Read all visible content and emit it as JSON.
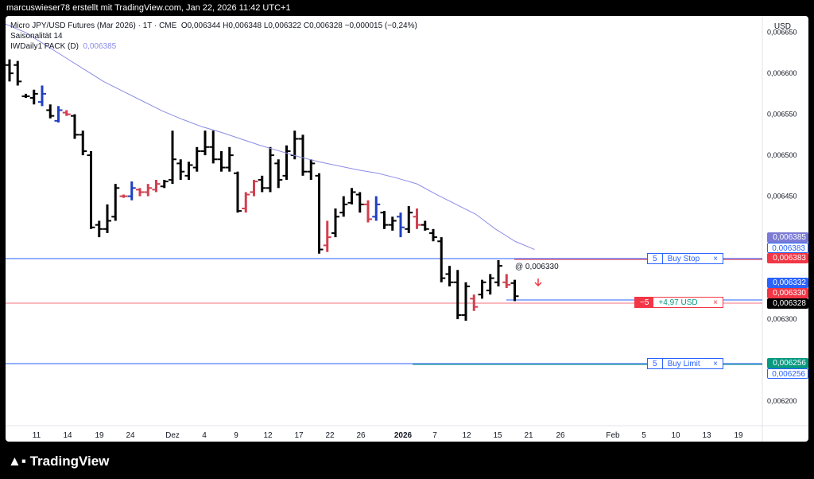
{
  "header": {
    "credit": "marcuswieser78 erstellt mit TradingView.com, Jan 22, 2026 11:42 UTC+1"
  },
  "legend": {
    "symbol": "Micro JPY/USD Futures (Mar 2026) · 1T · CME",
    "ohlc": "O0,006344  H0,006348  L0,006322  C0,006328  −0,000015 (−0,24%)",
    "indicator1": "Saisonalität  14",
    "indicator2_name": "IWDaily1 PACK (D)",
    "indicator2_value": "0,006385"
  },
  "currency": "USD",
  "colors": {
    "up": "#000000",
    "down": "#000000",
    "blue_bar": "#1f3fbf",
    "red_bar": "#d0404f",
    "ma": "#8c8ce6",
    "hline": "#2962ff",
    "redline": "#f23645"
  },
  "y_axis_ticks": [
    "0,006650",
    "0,006600",
    "0,006550",
    "0,006500",
    "0,006450",
    "0,006300",
    "0,006200"
  ],
  "x_axis_ticks": [
    "11",
    "14",
    "19",
    "24",
    "Dez",
    "4",
    "9",
    "12",
    "17",
    "22",
    "26",
    "2026",
    "7",
    "12",
    "15",
    "21",
    "26",
    "Feb",
    "5",
    "10",
    "13",
    "19"
  ],
  "price_labels": {
    "ma": "0,006385",
    "buy_stop": "0,006383",
    "buy_stop2": "0,006383",
    "position_blue": "0,006332",
    "position_red": "0,006330",
    "last": "0,006328",
    "buy_limit": "0,006256",
    "buy_limit2": "0,006256"
  },
  "orders": {
    "buy_stop": {
      "qty": "5",
      "label": "Buy Stop",
      "close": "×"
    },
    "position": {
      "qty": "−5",
      "label": "+4,97 USD",
      "close": "×"
    },
    "buy_limit": {
      "qty": "5",
      "label": "Buy Limit",
      "close": "×"
    }
  },
  "fill_note": "@ 0,006330",
  "footer": {
    "brand": "TradingView"
  },
  "chart_data": {
    "type": "ohlc-bar",
    "y_range": [
      0.00617,
      0.00667
    ],
    "bars": [
      {
        "h": 0.006617,
        "l": 0.00659,
        "o": 0.00661,
        "c": 0.0066,
        "col": "k"
      },
      {
        "h": 0.006615,
        "l": 0.006585,
        "o": 0.00661,
        "c": 0.00659,
        "col": "k"
      },
      {
        "h": 0.006575,
        "l": 0.00657,
        "o": 0.006572,
        "c": 0.006572,
        "col": "k"
      },
      {
        "h": 0.00658,
        "l": 0.006562,
        "o": 0.00657,
        "c": 0.006575,
        "col": "k"
      },
      {
        "h": 0.006585,
        "l": 0.00656,
        "o": 0.006565,
        "c": 0.006575,
        "col": "b"
      },
      {
        "h": 0.006562,
        "l": 0.006545,
        "o": 0.006555,
        "c": 0.006548,
        "col": "k"
      },
      {
        "h": 0.00656,
        "l": 0.00654,
        "o": 0.006542,
        "c": 0.006555,
        "col": "b"
      },
      {
        "h": 0.006555,
        "l": 0.006548,
        "o": 0.006552,
        "c": 0.00655,
        "col": "r"
      },
      {
        "h": 0.00655,
        "l": 0.00652,
        "o": 0.006548,
        "c": 0.006525,
        "col": "k"
      },
      {
        "h": 0.00653,
        "l": 0.0065,
        "o": 0.006525,
        "c": 0.006505,
        "col": "k"
      },
      {
        "h": 0.006505,
        "l": 0.00641,
        "o": 0.0065,
        "c": 0.006412,
        "col": "k"
      },
      {
        "h": 0.00642,
        "l": 0.0064,
        "o": 0.006415,
        "c": 0.00641,
        "col": "k"
      },
      {
        "h": 0.00644,
        "l": 0.006405,
        "o": 0.00641,
        "c": 0.00642,
        "col": "k"
      },
      {
        "h": 0.006465,
        "l": 0.00642,
        "o": 0.006425,
        "c": 0.00646,
        "col": "k"
      },
      {
        "h": 0.006452,
        "l": 0.006448,
        "o": 0.00645,
        "c": 0.00645,
        "col": "r"
      },
      {
        "h": 0.006468,
        "l": 0.006445,
        "o": 0.00645,
        "c": 0.00646,
        "col": "b"
      },
      {
        "h": 0.00646,
        "l": 0.00645,
        "o": 0.006458,
        "c": 0.006455,
        "col": "r"
      },
      {
        "h": 0.006465,
        "l": 0.00645,
        "o": 0.006455,
        "c": 0.00646,
        "col": "r"
      },
      {
        "h": 0.00647,
        "l": 0.006455,
        "o": 0.006458,
        "c": 0.006465,
        "col": "r"
      },
      {
        "h": 0.00647,
        "l": 0.00646,
        "o": 0.006462,
        "c": 0.006468,
        "col": "k"
      },
      {
        "h": 0.00653,
        "l": 0.006465,
        "o": 0.00647,
        "c": 0.006495,
        "col": "k"
      },
      {
        "h": 0.006495,
        "l": 0.00647,
        "o": 0.00649,
        "c": 0.00648,
        "col": "k"
      },
      {
        "h": 0.006492,
        "l": 0.00647,
        "o": 0.006475,
        "c": 0.006488,
        "col": "k"
      },
      {
        "h": 0.00651,
        "l": 0.00648,
        "o": 0.006485,
        "c": 0.006505,
        "col": "k"
      },
      {
        "h": 0.00653,
        "l": 0.0065,
        "o": 0.006505,
        "c": 0.00651,
        "col": "k"
      },
      {
        "h": 0.00653,
        "l": 0.00649,
        "o": 0.00651,
        "c": 0.006495,
        "col": "k"
      },
      {
        "h": 0.006505,
        "l": 0.00648,
        "o": 0.006495,
        "c": 0.006485,
        "col": "k"
      },
      {
        "h": 0.00651,
        "l": 0.00648,
        "o": 0.006485,
        "c": 0.0065,
        "col": "k"
      },
      {
        "h": 0.00648,
        "l": 0.00643,
        "o": 0.006478,
        "c": 0.006432,
        "col": "k"
      },
      {
        "h": 0.006455,
        "l": 0.00643,
        "o": 0.006435,
        "c": 0.006452,
        "col": "r"
      },
      {
        "h": 0.00647,
        "l": 0.00645,
        "o": 0.006455,
        "c": 0.006468,
        "col": "r"
      },
      {
        "h": 0.006475,
        "l": 0.006455,
        "o": 0.00647,
        "c": 0.00646,
        "col": "k"
      },
      {
        "h": 0.00651,
        "l": 0.006455,
        "o": 0.00646,
        "c": 0.0065,
        "col": "k"
      },
      {
        "h": 0.006495,
        "l": 0.00646,
        "o": 0.00649,
        "c": 0.00647,
        "col": "k"
      },
      {
        "h": 0.006512,
        "l": 0.00647,
        "o": 0.006475,
        "c": 0.006505,
        "col": "k"
      },
      {
        "h": 0.00653,
        "l": 0.006495,
        "o": 0.0065,
        "c": 0.00652,
        "col": "k"
      },
      {
        "h": 0.006525,
        "l": 0.006475,
        "o": 0.00652,
        "c": 0.00648,
        "col": "k"
      },
      {
        "h": 0.006495,
        "l": 0.00647,
        "o": 0.00648,
        "c": 0.00649,
        "col": "k"
      },
      {
        "h": 0.006478,
        "l": 0.00638,
        "o": 0.006475,
        "c": 0.006385,
        "col": "k"
      },
      {
        "h": 0.00642,
        "l": 0.006382,
        "o": 0.00639,
        "c": 0.0064,
        "col": "r"
      },
      {
        "h": 0.006435,
        "l": 0.0064,
        "o": 0.006405,
        "c": 0.006425,
        "col": "k"
      },
      {
        "h": 0.00645,
        "l": 0.006425,
        "o": 0.00643,
        "c": 0.00644,
        "col": "k"
      },
      {
        "h": 0.00646,
        "l": 0.00644,
        "o": 0.006442,
        "c": 0.006455,
        "col": "k"
      },
      {
        "h": 0.006455,
        "l": 0.00643,
        "o": 0.006452,
        "c": 0.00644,
        "col": "k"
      },
      {
        "h": 0.006445,
        "l": 0.006418,
        "o": 0.00644,
        "c": 0.006422,
        "col": "r"
      },
      {
        "h": 0.00645,
        "l": 0.00642,
        "o": 0.006425,
        "c": 0.00644,
        "col": "b"
      },
      {
        "h": 0.006432,
        "l": 0.00641,
        "o": 0.00643,
        "c": 0.006415,
        "col": "k"
      },
      {
        "h": 0.006425,
        "l": 0.006408,
        "o": 0.006415,
        "c": 0.00642,
        "col": "k"
      },
      {
        "h": 0.00643,
        "l": 0.0064,
        "o": 0.006425,
        "c": 0.006412,
        "col": "b"
      },
      {
        "h": 0.006438,
        "l": 0.006405,
        "o": 0.00641,
        "c": 0.00643,
        "col": "k"
      },
      {
        "h": 0.006435,
        "l": 0.00641,
        "o": 0.006425,
        "c": 0.006415,
        "col": "r"
      },
      {
        "h": 0.00642,
        "l": 0.006408,
        "o": 0.006415,
        "c": 0.00641,
        "col": "k"
      },
      {
        "h": 0.00641,
        "l": 0.006395,
        "o": 0.006405,
        "c": 0.0064,
        "col": "k"
      },
      {
        "h": 0.0064,
        "l": 0.006345,
        "o": 0.006395,
        "c": 0.00635,
        "col": "k"
      },
      {
        "h": 0.006365,
        "l": 0.00634,
        "o": 0.006355,
        "c": 0.006345,
        "col": "k"
      },
      {
        "h": 0.00636,
        "l": 0.0063,
        "o": 0.006345,
        "c": 0.006305,
        "col": "k"
      },
      {
        "h": 0.006345,
        "l": 0.006298,
        "o": 0.006305,
        "c": 0.00634,
        "col": "k"
      },
      {
        "h": 0.00633,
        "l": 0.00631,
        "o": 0.006325,
        "c": 0.006315,
        "col": "r"
      },
      {
        "h": 0.006348,
        "l": 0.006325,
        "o": 0.00633,
        "c": 0.006345,
        "col": "k"
      },
      {
        "h": 0.006355,
        "l": 0.00633,
        "o": 0.006335,
        "c": 0.00635,
        "col": "k"
      },
      {
        "h": 0.006372,
        "l": 0.00634,
        "o": 0.006345,
        "c": 0.006365,
        "col": "k"
      },
      {
        "h": 0.006355,
        "l": 0.006338,
        "o": 0.006345,
        "c": 0.006342,
        "col": "r"
      },
      {
        "h": 0.006348,
        "l": 0.006322,
        "o": 0.006344,
        "c": 0.006328,
        "col": "k"
      }
    ],
    "ma_line": [
      0.00666,
      0.00665,
      0.006635,
      0.00662,
      0.006605,
      0.00659,
      0.006578,
      0.006566,
      0.006554,
      0.006544,
      0.006535,
      0.006528,
      0.00652,
      0.006512,
      0.006505,
      0.006498,
      0.006492,
      0.006487,
      0.006482,
      0.006478,
      0.006472,
      0.006465,
      0.006452,
      0.00644,
      0.006428,
      0.00641,
      0.006395,
      0.006385
    ]
  }
}
